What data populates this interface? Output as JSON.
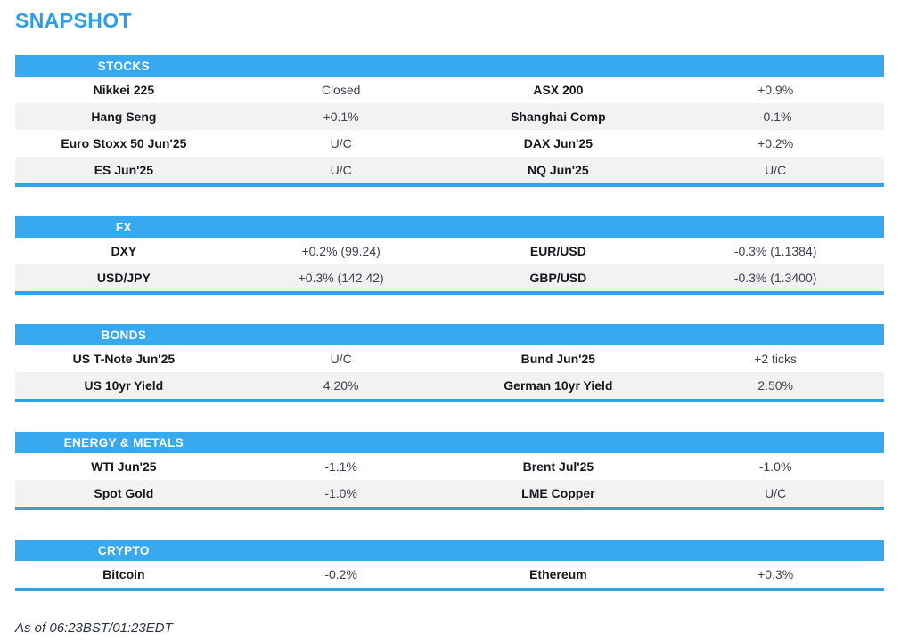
{
  "title": "SNAPSHOT",
  "theme": {
    "title_blue": "#2d9ee8",
    "section_header_blue": "#38a8ef",
    "section_border_blue": "#2fa3e6",
    "row_alt_gray": "#f2f2f2",
    "label_text_color": "#16181d",
    "value_text_color": "#3c414b"
  },
  "sections": [
    {
      "id": "stocks",
      "label": "STOCKS",
      "rows": [
        [
          "Nikkei 225",
          "Closed",
          "ASX 200",
          "+0.9%"
        ],
        [
          "Hang Seng",
          "+0.1%",
          "Shanghai Comp",
          "-0.1%"
        ],
        [
          "Euro Stoxx 50 Jun'25",
          "U/C",
          "DAX Jun'25",
          "+0.2%"
        ],
        [
          "ES Jun'25",
          "U/C",
          "NQ Jun'25",
          "U/C"
        ]
      ]
    },
    {
      "id": "fx",
      "label": "FX",
      "rows": [
        [
          "DXY",
          "+0.2% (99.24)",
          "EUR/USD",
          "-0.3% (1.1384)"
        ],
        [
          "USD/JPY",
          "+0.3% (142.42)",
          "GBP/USD",
          "-0.3% (1.3400)"
        ]
      ]
    },
    {
      "id": "bonds",
      "label": "BONDS",
      "rows": [
        [
          "US T-Note Jun'25",
          "U/C",
          "Bund Jun'25",
          "+2 ticks"
        ],
        [
          "US 10yr Yield",
          "4.20%",
          "German 10yr Yield",
          "2.50%"
        ]
      ]
    },
    {
      "id": "energy-metals",
      "label": "ENERGY & METALS",
      "rows": [
        [
          "WTI Jun'25",
          "-1.1%",
          "Brent Jul'25",
          "-1.0%"
        ],
        [
          "Spot Gold",
          "-1.0%",
          "LME Copper",
          "U/C"
        ]
      ]
    },
    {
      "id": "crypto",
      "label": "CRYPTO",
      "rows": [
        [
          "Bitcoin",
          "-0.2%",
          "Ethereum",
          "+0.3%"
        ]
      ]
    }
  ],
  "footer": {
    "timestamp": "As of 06:23BST/01:23EDT"
  }
}
